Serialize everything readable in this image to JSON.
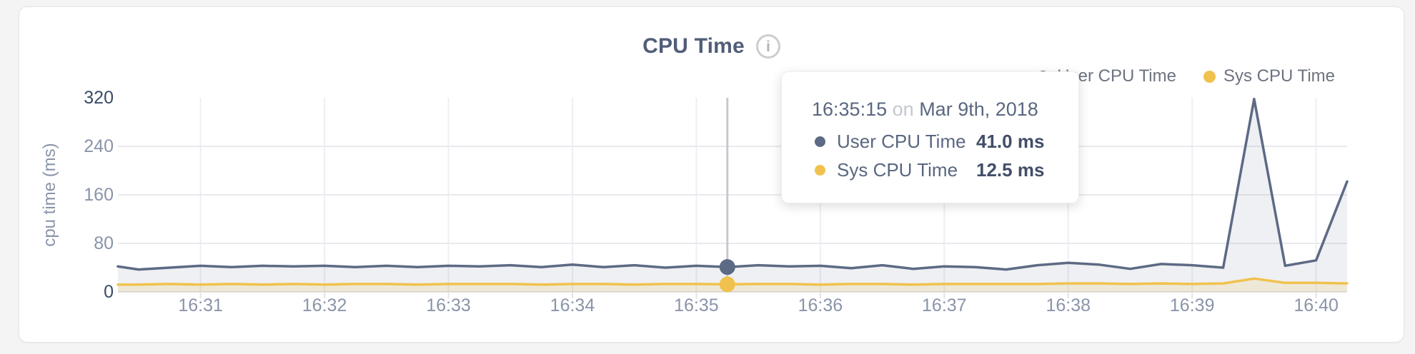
{
  "header": {
    "title": "CPU Time",
    "info_glyph": "i"
  },
  "legend": {
    "items": [
      {
        "label": "User CPU Time",
        "color": "#5d6a85"
      },
      {
        "label": "Sys CPU Time",
        "color": "#f0c24d"
      }
    ]
  },
  "y_axis": {
    "title": "cpu time (ms)",
    "ticks": [
      320,
      240,
      160,
      80,
      0
    ]
  },
  "x_axis": {
    "ticks": [
      "16:31",
      "16:32",
      "16:33",
      "16:34",
      "16:35",
      "16:36",
      "16:37",
      "16:38",
      "16:39",
      "16:40"
    ]
  },
  "tooltip": {
    "time": "16:35:15",
    "connector": "on",
    "date": "Mar 9th, 2018",
    "rows": [
      {
        "label": "User CPU Time",
        "value": "41.0 ms",
        "color": "#5d6a85"
      },
      {
        "label": "Sys CPU Time",
        "value": "12.5 ms",
        "color": "#f0c24d"
      }
    ]
  },
  "chart_data": {
    "type": "area",
    "title": "CPU Time",
    "ylabel": "cpu time (ms)",
    "ylim": [
      0,
      320
    ],
    "grid_y": [
      80,
      160,
      240
    ],
    "legend_position": "top-right",
    "x_range": [
      "16:30:20",
      "16:40:15"
    ],
    "x": [
      "16:30:20",
      "16:30:30",
      "16:30:45",
      "16:31:00",
      "16:31:15",
      "16:31:30",
      "16:31:45",
      "16:32:00",
      "16:32:15",
      "16:32:30",
      "16:32:45",
      "16:33:00",
      "16:33:15",
      "16:33:30",
      "16:33:45",
      "16:34:00",
      "16:34:15",
      "16:34:30",
      "16:34:45",
      "16:35:00",
      "16:35:15",
      "16:35:30",
      "16:35:45",
      "16:36:00",
      "16:36:15",
      "16:36:30",
      "16:36:45",
      "16:37:00",
      "16:37:15",
      "16:37:30",
      "16:37:45",
      "16:38:00",
      "16:38:15",
      "16:38:30",
      "16:38:45",
      "16:39:00",
      "16:39:15",
      "16:39:30",
      "16:39:45",
      "16:40:00",
      "16:40:15"
    ],
    "series": [
      {
        "name": "User CPU Time",
        "color": "#5d6a85",
        "fill": "rgba(99,112,138,0.10)",
        "values": [
          42,
          37,
          40,
          43,
          41,
          43,
          42,
          43,
          41,
          43,
          41,
          43,
          42,
          44,
          41,
          45,
          41,
          44,
          40,
          43,
          41,
          44,
          42,
          43,
          39,
          44,
          38,
          42,
          41,
          37,
          44,
          48,
          45,
          38,
          46,
          44,
          40,
          318,
          43,
          52,
          182
        ]
      },
      {
        "name": "Sys CPU Time",
        "color": "#f0c24d",
        "fill": "rgba(240,194,77,0.17)",
        "values": [
          12,
          12,
          13,
          12,
          13,
          12,
          13,
          12,
          13,
          13,
          12,
          13,
          13,
          13,
          12,
          13,
          13,
          12,
          13,
          13,
          12.5,
          13,
          13,
          12,
          13,
          13,
          12,
          13,
          13,
          13,
          13,
          14,
          14,
          13,
          14,
          13,
          14,
          22,
          15,
          15,
          14
        ]
      }
    ],
    "hover": {
      "index": 20,
      "time": "16:35:15",
      "user_ms": 41.0,
      "sys_ms": 12.5
    }
  },
  "colors": {
    "crosshair": "#c6c9cf",
    "grid_h": "#e8eaee",
    "grid_v": "#edeff2",
    "baseline": "#e2e4e8",
    "tick_dark": "#3b4a66",
    "tick_light": "#8a94a9"
  }
}
